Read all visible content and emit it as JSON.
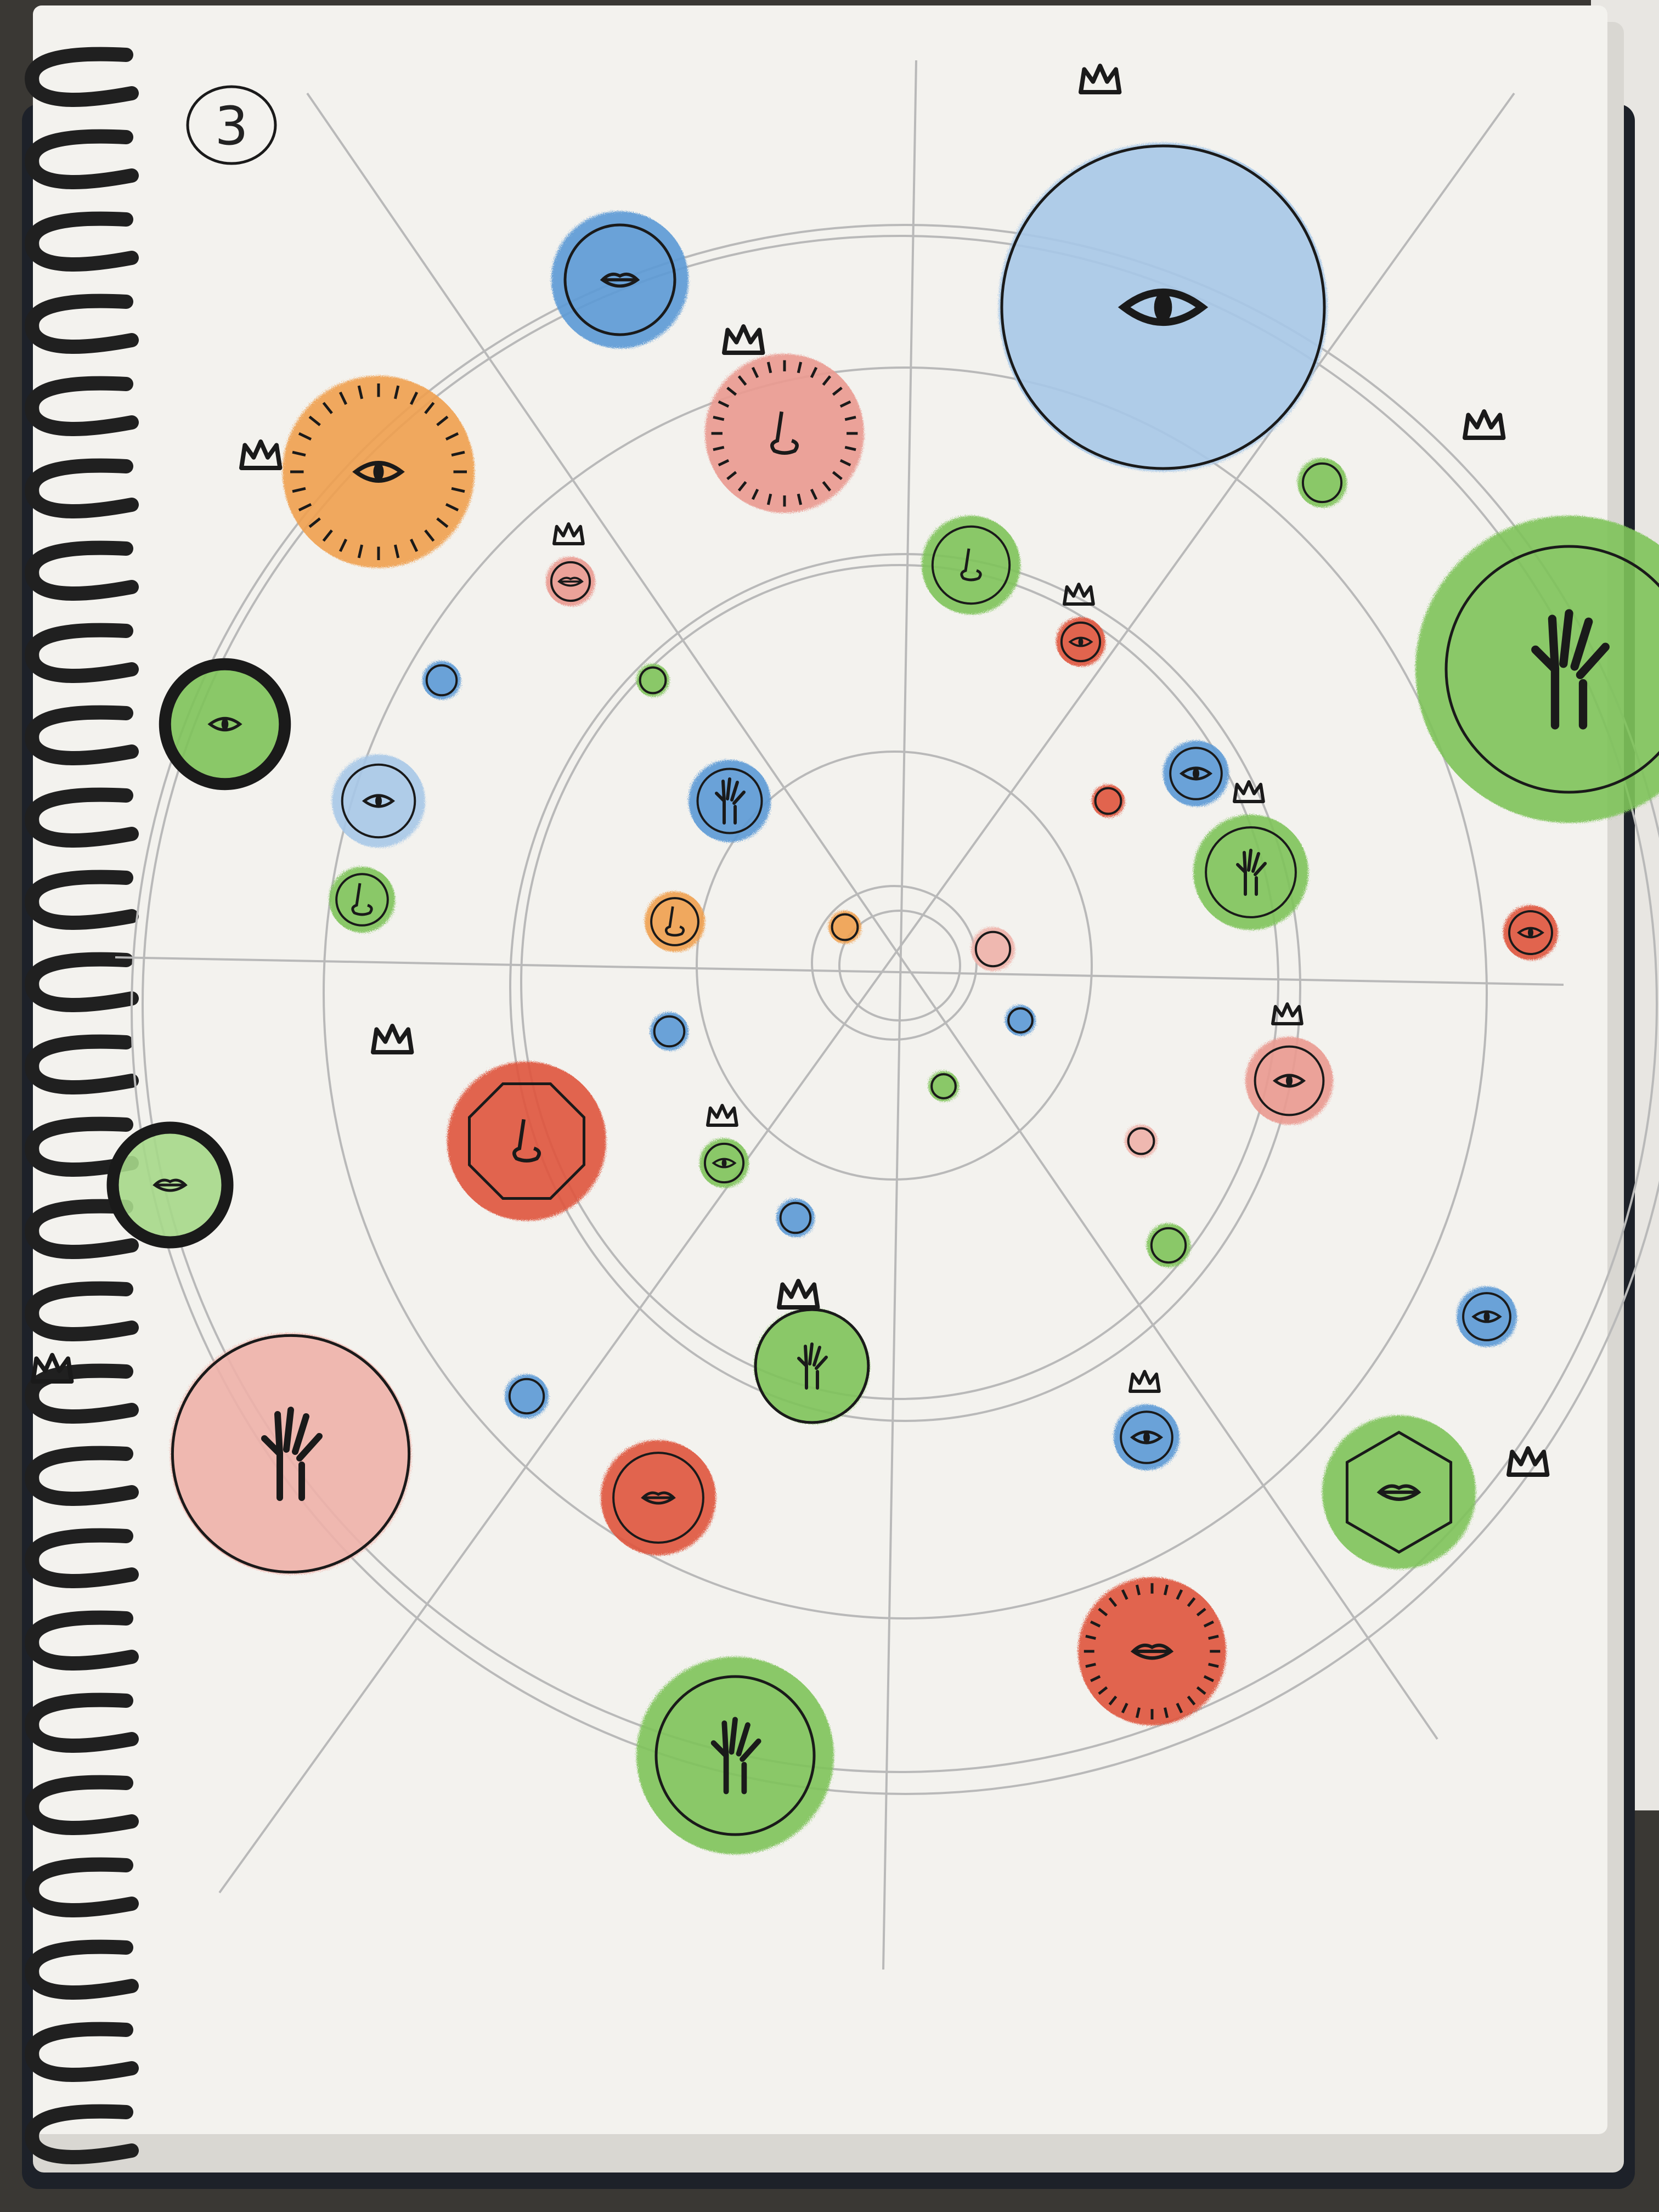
{
  "page": {
    "number": "3"
  },
  "colors": {
    "paper": "#f3f2ee",
    "notebook_cover": "#1d2129",
    "table": "#3a3834",
    "spiral": "#202020",
    "pencil": "#b9b9b9",
    "ink": "#1a1a1a",
    "blue": "#5b9ad6",
    "light_blue": "#a8c8e8",
    "orange": "#f0a050",
    "red": "#e0553e",
    "salmon": "#eb9a90",
    "pink": "#efb2aa",
    "green": "#7fc45a",
    "light_green": "#a7d98a"
  },
  "planets": [
    {
      "color": "blue",
      "feature": "mouth-icon",
      "crown": false,
      "outline": "inner-ring"
    },
    {
      "color": "light_blue",
      "feature": "eye-icon",
      "crown": true,
      "outline": "ring"
    },
    {
      "color": "orange",
      "feature": "eye-icon",
      "crown": true,
      "outline": "spikes"
    },
    {
      "color": "salmon",
      "feature": "nose-icon",
      "crown": true,
      "outline": "spikes"
    },
    {
      "color": "green",
      "feature": "hand-icon",
      "crown": true,
      "outline": "inner-ring"
    },
    {
      "color": "pink",
      "feature": "hand-icon",
      "crown": true,
      "outline": "ring"
    },
    {
      "color": "green",
      "feature": "hand-icon",
      "crown": false,
      "outline": "inner-ring"
    },
    {
      "color": "red",
      "feature": "mouth-icon",
      "crown": false,
      "outline": "spikes"
    },
    {
      "color": "red",
      "feature": "nose-icon",
      "crown": true,
      "outline": "octagon"
    },
    {
      "color": "green",
      "feature": "eye-icon",
      "crown": false,
      "outline": "bold-ring"
    },
    {
      "color": "light_green",
      "feature": "mouth-icon",
      "crown": false,
      "outline": "bold-ring"
    },
    {
      "color": "green",
      "feature": "mouth-icon",
      "crown": true,
      "outline": "hexagon"
    },
    {
      "color": "green",
      "feature": "hand-icon",
      "crown": true,
      "outline": "ring"
    }
  ]
}
